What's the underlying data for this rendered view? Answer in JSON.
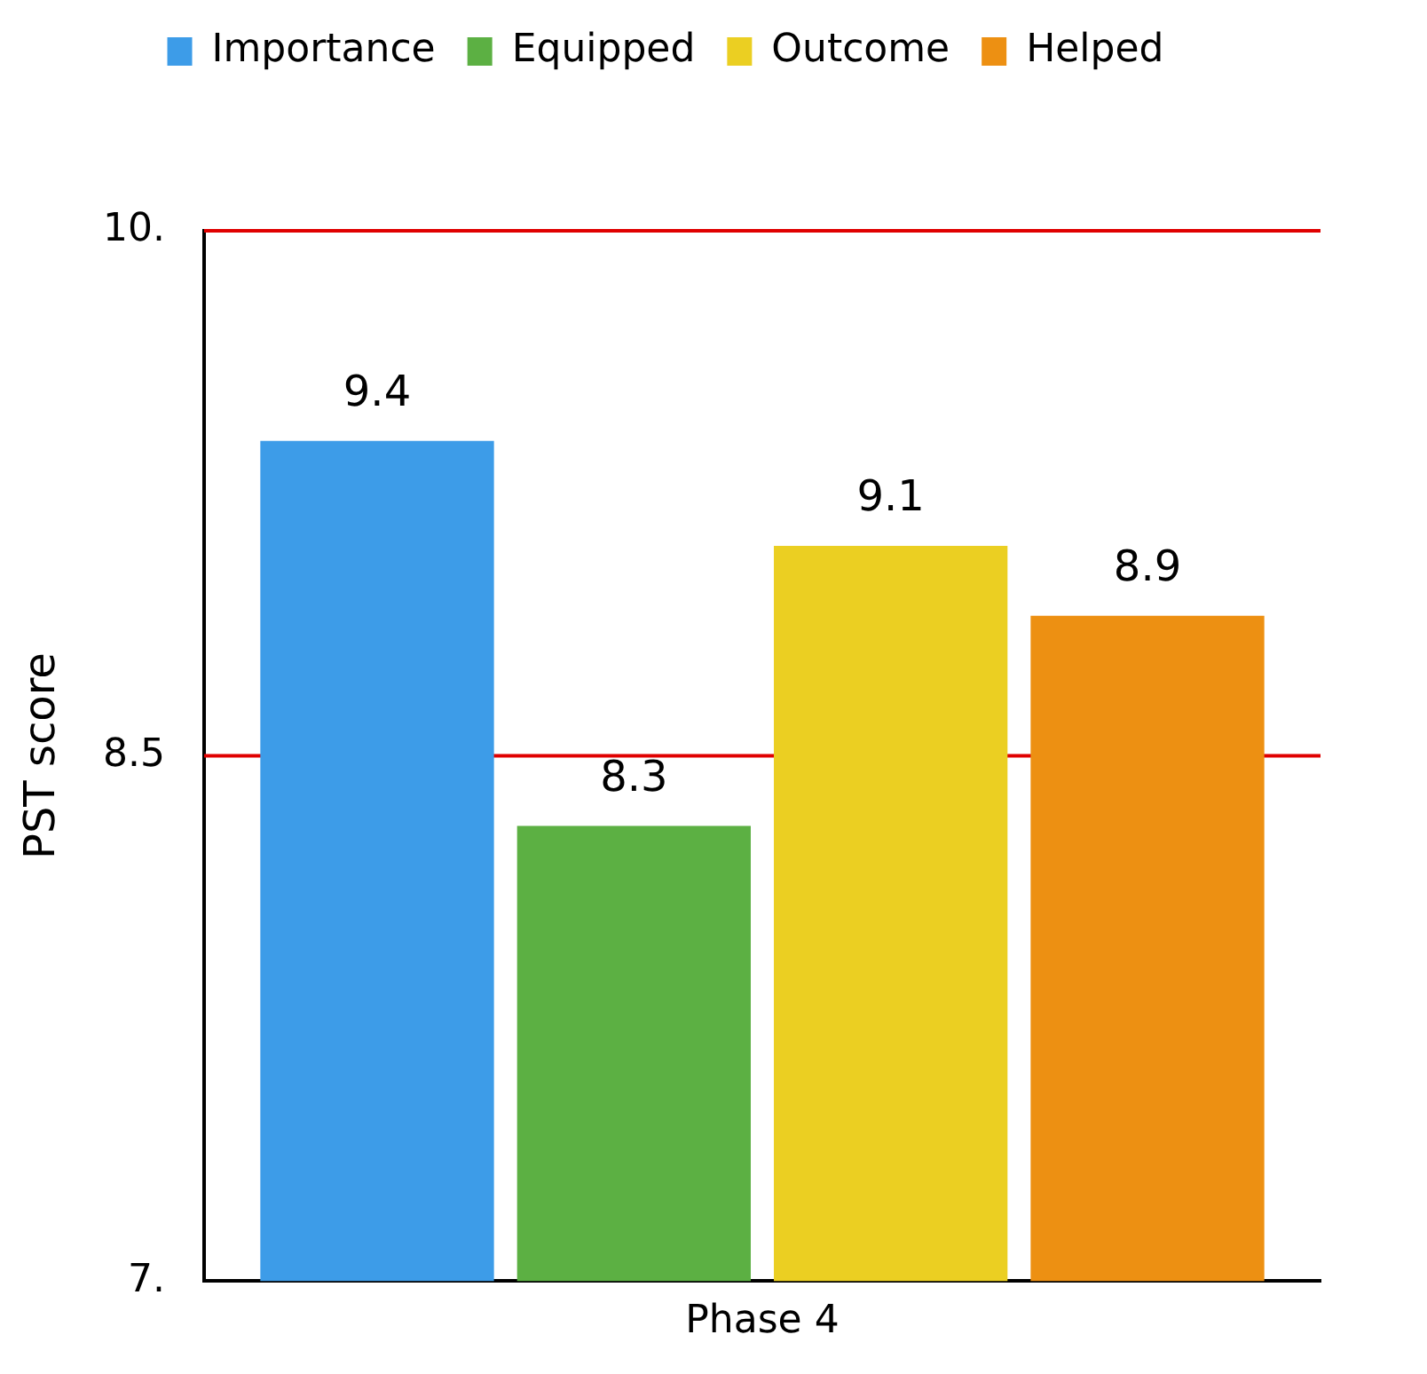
{
  "chart_data": {
    "type": "bar",
    "ylabel": "PST score",
    "categories": [
      "Phase 4"
    ],
    "series": [
      {
        "name": "Importance",
        "color": "#3d9ce8",
        "values": [
          9.4
        ]
      },
      {
        "name": "Equipped",
        "color": "#5cb043",
        "values": [
          8.3
        ]
      },
      {
        "name": "Outcome",
        "color": "#ebcf22",
        "values": [
          9.1
        ]
      },
      {
        "name": "Helped",
        "color": "#ed9012",
        "values": [
          8.9
        ]
      }
    ],
    "ylim": [
      7,
      10
    ],
    "yticks": [
      {
        "value": 7,
        "label": "7."
      },
      {
        "value": 8.5,
        "label": "8.5"
      },
      {
        "value": 10,
        "label": "10."
      }
    ],
    "ref_lines": [
      {
        "axis": "y",
        "value": 8.5,
        "color": "#e00000"
      },
      {
        "axis": "y",
        "value": 10,
        "color": "#e00000"
      }
    ],
    "legend": "top",
    "data_labels": true
  }
}
